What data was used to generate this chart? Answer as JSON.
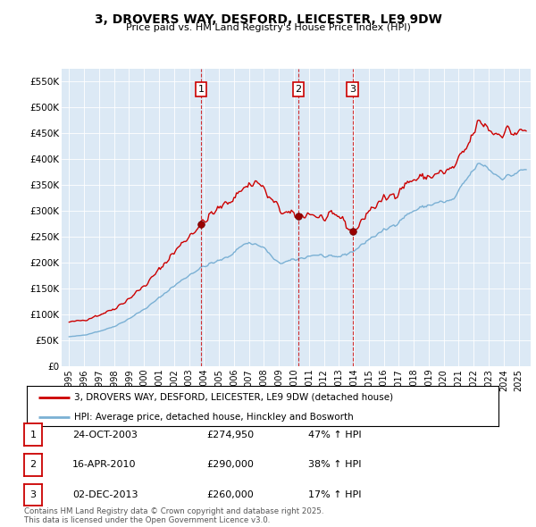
{
  "title": "3, DROVERS WAY, DESFORD, LEICESTER, LE9 9DW",
  "subtitle": "Price paid vs. HM Land Registry's House Price Index (HPI)",
  "ylabel_values": [
    "£0",
    "£50K",
    "£100K",
    "£150K",
    "£200K",
    "£250K",
    "£300K",
    "£350K",
    "£400K",
    "£450K",
    "£500K",
    "£550K"
  ],
  "yticks": [
    0,
    50000,
    100000,
    150000,
    200000,
    250000,
    300000,
    350000,
    400000,
    450000,
    500000,
    550000
  ],
  "ylim": [
    0,
    575000
  ],
  "background_color": "#dce9f5",
  "red_line_color": "#cc0000",
  "blue_line_color": "#7ab0d4",
  "sale_points": [
    {
      "date_num": 2003.81,
      "price": 274950,
      "label": "1"
    },
    {
      "date_num": 2010.29,
      "price": 290000,
      "label": "2"
    },
    {
      "date_num": 2013.92,
      "price": 260000,
      "label": "3"
    }
  ],
  "sale_info": [
    {
      "label": "1",
      "date": "24-OCT-2003",
      "price": "£274,950",
      "hpi": "47% ↑ HPI"
    },
    {
      "label": "2",
      "date": "16-APR-2010",
      "price": "£290,000",
      "hpi": "38% ↑ HPI"
    },
    {
      "label": "3",
      "date": "02-DEC-2013",
      "price": "£260,000",
      "hpi": "17% ↑ HPI"
    }
  ],
  "legend_red": "3, DROVERS WAY, DESFORD, LEICESTER, LE9 9DW (detached house)",
  "legend_blue": "HPI: Average price, detached house, Hinckley and Bosworth",
  "footer": "Contains HM Land Registry data © Crown copyright and database right 2025.\nThis data is licensed under the Open Government Licence v3.0.",
  "xlim_start": 1994.5,
  "xlim_end": 2025.8
}
